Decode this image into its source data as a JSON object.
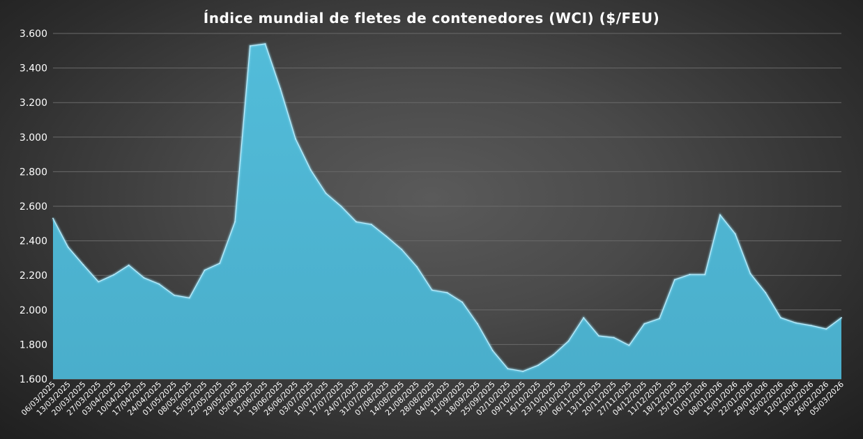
{
  "chart_data": {
    "type": "area",
    "title": "Índice mundial de fletes de contenedores (WCI) ($/FEU)",
    "xlabel": "",
    "ylabel": "",
    "ylim": [
      1600,
      3600
    ],
    "ytick_step": 200,
    "grid": true,
    "legend": "none",
    "colors": {
      "area": "#4eb6d3",
      "edge": "#8fdcf2"
    },
    "x": [
      "06/03/2025",
      "13/03/2025",
      "20/03/2025",
      "27/03/2025",
      "03/04/2025",
      "10/04/2025",
      "17/04/2025",
      "24/04/2025",
      "01/05/2025",
      "08/05/2025",
      "15/05/2025",
      "22/05/2025",
      "29/05/2025",
      "05/06/2025",
      "12/06/2025",
      "19/06/2025",
      "26/06/2025",
      "03/07/2025",
      "10/07/2025",
      "17/07/2025",
      "24/07/2025",
      "31/07/2025",
      "07/08/2025",
      "14/08/2025",
      "21/08/2025",
      "28/08/2025",
      "04/09/2025",
      "11/09/2025",
      "18/09/2025",
      "25/09/2025",
      "02/10/2025",
      "09/10/2025",
      "16/10/2025",
      "23/10/2025",
      "30/10/2025",
      "06/11/2025",
      "13/11/2025",
      "20/11/2025",
      "27/11/2025",
      "04/12/2025",
      "11/12/2025",
      "18/12/2025",
      "25/12/2025",
      "01/01/2026",
      "08/01/2026",
      "15/01/2026",
      "22/01/2026",
      "29/01/2026",
      "05/02/2026",
      "12/02/2026",
      "19/02/2026",
      "26/02/2026",
      "05/03/2026"
    ],
    "series": [
      {
        "values": [
          2530,
          2363,
          2261,
          2163,
          2203,
          2259,
          2186,
          2150,
          2085,
          2070,
          2230,
          2270,
          2510,
          3528,
          3540,
          3280,
          2990,
          2810,
          2675,
          2600,
          2510,
          2495,
          2425,
          2350,
          2250,
          2115,
          2100,
          2045,
          1920,
          1765,
          1660,
          1645,
          1680,
          1740,
          1820,
          1955,
          1850,
          1840,
          1795,
          1920,
          1950,
          2175,
          2205,
          2205,
          2550,
          2440,
          2210,
          2100,
          1955,
          1925,
          1910,
          1890,
          1955
        ]
      }
    ]
  }
}
